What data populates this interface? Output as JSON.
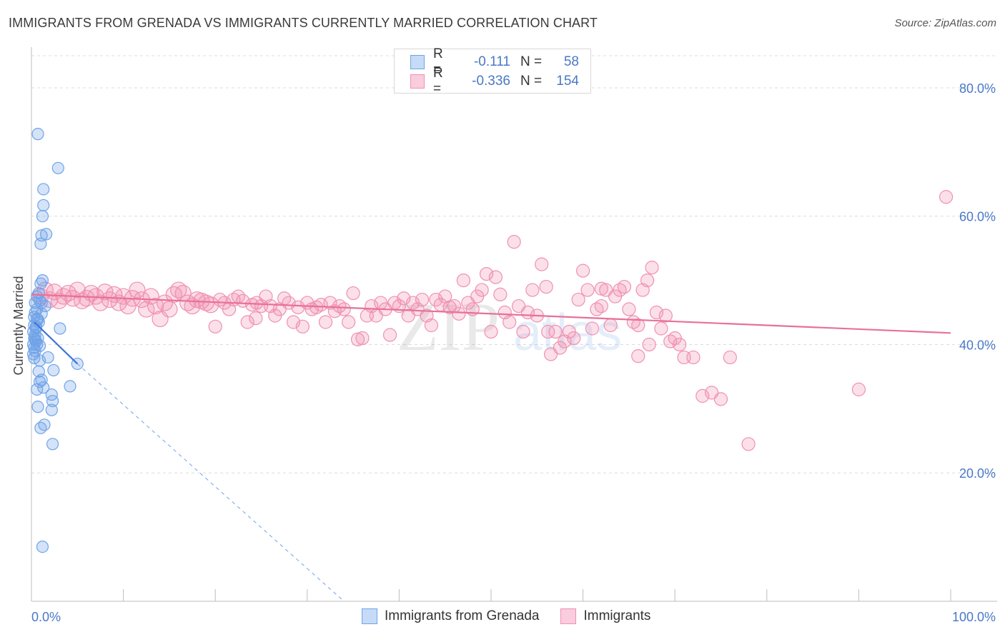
{
  "header": {
    "title": "IMMIGRANTS FROM GRENADA VS IMMIGRANTS CURRENTLY MARRIED CORRELATION CHART",
    "source": "Source: ZipAtlas.com"
  },
  "legend": {
    "rows": [
      {
        "r_label": "R =",
        "r_value": "-0.111",
        "n_label": "N =",
        "n_value": "58",
        "color": "#6fa3e8"
      },
      {
        "r_label": "R =",
        "r_value": "-0.336",
        "n_label": "N =",
        "n_value": "154",
        "color": "#f090b0"
      }
    ]
  },
  "bottom_legend": {
    "items": [
      {
        "label": "Immigrants from Grenada",
        "color": "#6fa3e8"
      },
      {
        "label": "Immigrants",
        "color": "#f090b0"
      }
    ]
  },
  "watermark": {
    "zip": "ZIP",
    "atlas": "atlas"
  },
  "chart_data": {
    "type": "scatter",
    "title": "IMMIGRANTS FROM GRENADA VS IMMIGRANTS CURRENTLY MARRIED CORRELATION CHART",
    "xlabel": "",
    "ylabel": "Currently Married",
    "xlim": [
      0,
      100
    ],
    "ylim": [
      0,
      85
    ],
    "x_tick_labels": [
      "0.0%",
      "100.0%"
    ],
    "y_ticks": [
      20,
      40,
      60,
      80
    ],
    "y_tick_labels": [
      "20.0%",
      "40.0%",
      "60.0%",
      "80.0%"
    ],
    "grid": true,
    "colors": {
      "blue": "#6fa3e8",
      "blue_line": "#3a74d8",
      "pink": "#f090b0",
      "pink_line": "#e8709a"
    },
    "series": [
      {
        "name": "Immigrants from Grenada",
        "trend": {
          "x": [
            0.3,
            5
          ],
          "y": [
            43.5,
            37.0
          ],
          "dashed_to": [
            34,
            0
          ]
        },
        "points": [
          [
            0.7,
            72.8
          ],
          [
            2.9,
            67.5
          ],
          [
            1.3,
            64.2
          ],
          [
            1.3,
            61.7
          ],
          [
            1.2,
            60.0
          ],
          [
            1.6,
            57.2
          ],
          [
            1.1,
            57.0
          ],
          [
            1.0,
            55.7
          ],
          [
            1.2,
            50.0
          ],
          [
            1.0,
            49.5
          ],
          [
            0.8,
            48.0
          ],
          [
            0.6,
            47.5
          ],
          [
            0.9,
            46.8
          ],
          [
            0.4,
            46.5
          ],
          [
            1.1,
            46.5
          ],
          [
            0.6,
            45.5
          ],
          [
            0.4,
            45.0
          ],
          [
            1.1,
            44.8
          ],
          [
            0.3,
            44.3
          ],
          [
            0.6,
            44.0
          ],
          [
            0.8,
            43.5
          ],
          [
            0.3,
            43.0
          ],
          [
            0.5,
            42.5
          ],
          [
            0.2,
            42.0
          ],
          [
            0.4,
            41.5
          ],
          [
            0.3,
            41.0
          ],
          [
            0.7,
            41.0
          ],
          [
            0.5,
            40.5
          ],
          [
            0.2,
            40.0
          ],
          [
            0.6,
            40.0
          ],
          [
            0.3,
            39.5
          ],
          [
            0.4,
            39.0
          ],
          [
            0.2,
            38.5
          ],
          [
            3.1,
            42.5
          ],
          [
            1.8,
            38.0
          ],
          [
            0.9,
            37.5
          ],
          [
            5.0,
            37.0
          ],
          [
            2.4,
            36.0
          ],
          [
            0.8,
            35.8
          ],
          [
            1.1,
            34.5
          ],
          [
            0.9,
            34.2
          ],
          [
            4.2,
            33.5
          ],
          [
            1.3,
            33.3
          ],
          [
            0.6,
            33.0
          ],
          [
            2.2,
            32.2
          ],
          [
            2.3,
            31.2
          ],
          [
            0.7,
            30.3
          ],
          [
            2.2,
            29.8
          ],
          [
            1.4,
            27.5
          ],
          [
            1.0,
            27.0
          ],
          [
            2.3,
            24.5
          ],
          [
            1.2,
            8.5
          ],
          [
            0.5,
            42.8
          ],
          [
            0.7,
            43.9
          ],
          [
            0.4,
            40.8
          ],
          [
            0.9,
            39.8
          ],
          [
            0.3,
            37.9
          ],
          [
            1.5,
            46.0
          ]
        ]
      },
      {
        "name": "Immigrants",
        "trend": {
          "x": [
            0,
            100
          ],
          "y": [
            47.8,
            41.8
          ]
        },
        "points": [
          [
            1,
            47.5
          ],
          [
            1.5,
            48.5
          ],
          [
            2,
            47.0
          ],
          [
            2.5,
            48.2
          ],
          [
            3,
            46.8
          ],
          [
            3.5,
            47.5
          ],
          [
            4,
            48.0
          ],
          [
            4.5,
            47.2
          ],
          [
            5,
            48.5
          ],
          [
            5.5,
            46.8
          ],
          [
            6,
            47.2
          ],
          [
            6.5,
            48.0
          ],
          [
            7,
            47.5
          ],
          [
            7.5,
            46.5
          ],
          [
            8,
            48.2
          ],
          [
            8.5,
            47.0
          ],
          [
            9,
            47.8
          ],
          [
            9.5,
            46.5
          ],
          [
            10,
            47.5
          ],
          [
            10.5,
            46.0
          ],
          [
            11,
            47.2
          ],
          [
            11.5,
            48.5
          ],
          [
            12,
            47.0
          ],
          [
            12.5,
            45.5
          ],
          [
            13,
            47.5
          ],
          [
            13.5,
            46.0
          ],
          [
            14,
            44.0
          ],
          [
            14.5,
            46.5
          ],
          [
            15,
            45.5
          ],
          [
            15.5,
            47.8
          ],
          [
            16,
            48.5
          ],
          [
            16.5,
            48.0
          ],
          [
            17,
            46.5
          ],
          [
            17.5,
            46.0
          ],
          [
            18,
            47.0
          ],
          [
            18.5,
            46.8
          ],
          [
            19,
            46.5
          ],
          [
            19.5,
            46.2
          ],
          [
            20,
            42.8
          ],
          [
            20.5,
            47.0
          ],
          [
            21,
            46.5
          ],
          [
            21.5,
            45.5
          ],
          [
            22,
            47.0
          ],
          [
            22.5,
            47.5
          ],
          [
            23,
            46.8
          ],
          [
            23.5,
            43.5
          ],
          [
            24,
            46.2
          ],
          [
            24.5,
            46.5
          ],
          [
            25,
            46.0
          ],
          [
            25.5,
            47.5
          ],
          [
            26,
            46.0
          ],
          [
            26.5,
            44.5
          ],
          [
            27,
            45.5
          ],
          [
            27.5,
            47.2
          ],
          [
            28,
            46.5
          ],
          [
            28.5,
            43.5
          ],
          [
            29,
            45.8
          ],
          [
            29.5,
            42.8
          ],
          [
            30,
            46.5
          ],
          [
            30.5,
            45.5
          ],
          [
            31,
            45.8
          ],
          [
            31.5,
            46.2
          ],
          [
            32,
            43.5
          ],
          [
            32.5,
            46.5
          ],
          [
            33,
            45.2
          ],
          [
            33.5,
            46.0
          ],
          [
            34,
            45.5
          ],
          [
            34.5,
            43.5
          ],
          [
            35,
            48.0
          ],
          [
            35.5,
            40.8
          ],
          [
            36,
            41.0
          ],
          [
            36.5,
            44.5
          ],
          [
            37,
            46.0
          ],
          [
            37.5,
            44.5
          ],
          [
            38,
            46.5
          ],
          [
            38.5,
            45.5
          ],
          [
            39,
            41.5
          ],
          [
            39.5,
            46.5
          ],
          [
            40,
            46.0
          ],
          [
            40.5,
            47.2
          ],
          [
            41,
            44.5
          ],
          [
            41.5,
            46.5
          ],
          [
            42,
            45.5
          ],
          [
            42.5,
            47.0
          ],
          [
            43,
            44.5
          ],
          [
            43.5,
            43.0
          ],
          [
            44,
            47.0
          ],
          [
            44.5,
            46.2
          ],
          [
            45,
            47.5
          ],
          [
            45.5,
            45.8
          ],
          [
            46,
            46.0
          ],
          [
            46.5,
            44.8
          ],
          [
            47,
            50.0
          ],
          [
            47.5,
            46.5
          ],
          [
            48,
            45.5
          ],
          [
            48.5,
            47.5
          ],
          [
            49,
            48.5
          ],
          [
            49.5,
            51.0
          ],
          [
            50,
            42.0
          ],
          [
            50.5,
            50.5
          ],
          [
            51,
            47.8
          ],
          [
            51.5,
            45.0
          ],
          [
            52,
            43.5
          ],
          [
            52.5,
            56.0
          ],
          [
            53,
            46.0
          ],
          [
            53.5,
            42.0
          ],
          [
            54,
            45.0
          ],
          [
            54.5,
            48.5
          ],
          [
            55,
            44.5
          ],
          [
            55.5,
            52.5
          ],
          [
            56,
            49.0
          ],
          [
            56.5,
            38.5
          ],
          [
            57,
            42.0
          ],
          [
            57.5,
            39.5
          ],
          [
            58,
            40.5
          ],
          [
            58.5,
            42.0
          ],
          [
            59,
            41.0
          ],
          [
            59.5,
            47.0
          ],
          [
            60,
            51.5
          ],
          [
            60.5,
            48.5
          ],
          [
            61,
            42.5
          ],
          [
            61.5,
            45.5
          ],
          [
            62,
            46.0
          ],
          [
            62.5,
            48.5
          ],
          [
            63,
            43.0
          ],
          [
            63.5,
            47.5
          ],
          [
            64,
            48.5
          ],
          [
            64.5,
            49.0
          ],
          [
            65,
            45.5
          ],
          [
            65.5,
            43.5
          ],
          [
            66,
            43.0
          ],
          [
            66.5,
            48.5
          ],
          [
            67,
            50.0
          ],
          [
            67.5,
            52.0
          ],
          [
            68,
            45.0
          ],
          [
            68.5,
            42.5
          ],
          [
            69,
            44.5
          ],
          [
            69.5,
            40.5
          ],
          [
            70,
            41.0
          ],
          [
            70.5,
            40.0
          ],
          [
            71,
            38.0
          ],
          [
            72,
            38.0
          ],
          [
            73,
            32.0
          ],
          [
            74,
            32.5
          ],
          [
            75,
            31.5
          ],
          [
            76,
            38.0
          ],
          [
            78,
            24.5
          ],
          [
            90,
            33.0
          ],
          [
            99.5,
            63.0
          ],
          [
            67.2,
            40.0
          ],
          [
            62,
            48.7
          ],
          [
            66,
            38.2
          ],
          [
            56.2,
            42.0
          ],
          [
            24.4,
            44.1
          ]
        ]
      }
    ]
  }
}
